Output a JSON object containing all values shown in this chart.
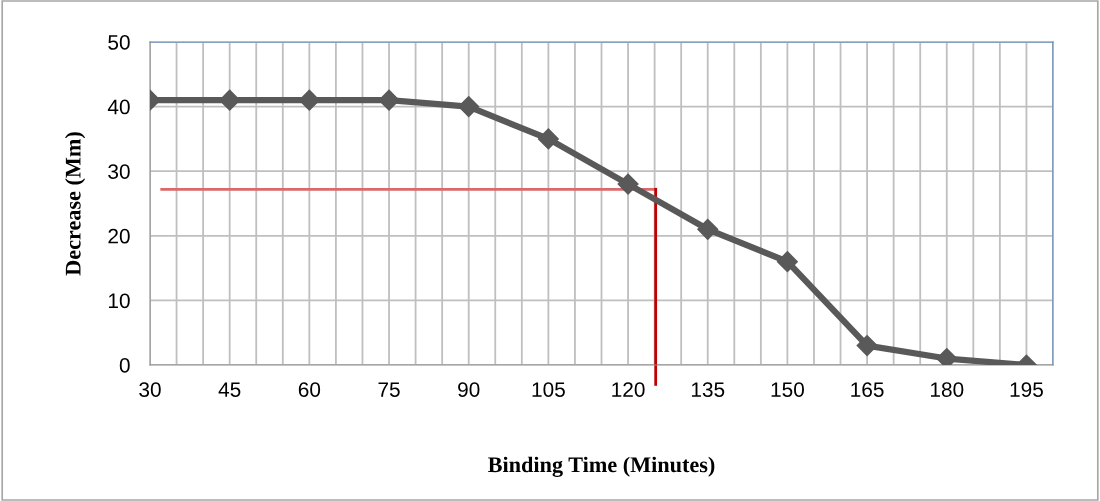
{
  "chart_data": {
    "type": "line",
    "xlabel": "Binding Time (Minutes)",
    "ylabel": "Decrease (Mm)",
    "x": [
      30,
      45,
      60,
      75,
      90,
      105,
      120,
      135,
      150,
      165,
      180,
      195
    ],
    "series": [
      {
        "color": "#595959",
        "values": [
          41,
          41,
          41,
          41,
          40,
          35,
          28,
          21,
          16,
          3,
          1,
          0
        ]
      }
    ],
    "marker": "diamond",
    "line_style": "solid",
    "grid": true,
    "xlim": [
      30,
      200
    ],
    "ylim": [
      0,
      50
    ],
    "xticks": [
      30,
      {
        "value": 35,
        "label": null
      },
      {
        "value": 40,
        "label": null
      },
      45,
      {
        "value": 50,
        "label": null
      },
      {
        "value": 55,
        "label": null
      },
      60,
      {
        "value": 65,
        "label": null
      },
      {
        "value": 70,
        "label": null
      },
      75,
      {
        "value": 80,
        "label": null
      },
      {
        "value": 85,
        "label": null
      },
      90,
      {
        "value": 95,
        "label": null
      },
      {
        "value": 100,
        "label": null
      },
      105,
      {
        "value": 110,
        "label": null
      },
      {
        "value": 115,
        "label": null
      },
      120,
      {
        "value": 125,
        "label": null
      },
      {
        "value": 130,
        "label": null
      },
      135,
      {
        "value": 140,
        "label": null
      },
      {
        "value": 145,
        "label": null
      },
      150,
      {
        "value": 155,
        "label": null
      },
      {
        "value": 160,
        "label": null
      },
      165,
      {
        "value": 170,
        "label": null
      },
      {
        "value": 175,
        "label": null
      },
      180,
      {
        "value": 185,
        "label": null
      },
      {
        "value": 190,
        "label": null
      },
      195,
      {
        "value": 200,
        "label": null
      }
    ],
    "yticks": [
      0,
      10,
      20,
      30,
      40,
      50
    ],
    "ref_lines": [
      {
        "axis": "y",
        "value": 27.2,
        "color": "#d9696b",
        "line_style": "solid"
      },
      {
        "axis": "x",
        "value": 125.2,
        "color": "#c00000",
        "line_style": "solid"
      }
    ]
  }
}
